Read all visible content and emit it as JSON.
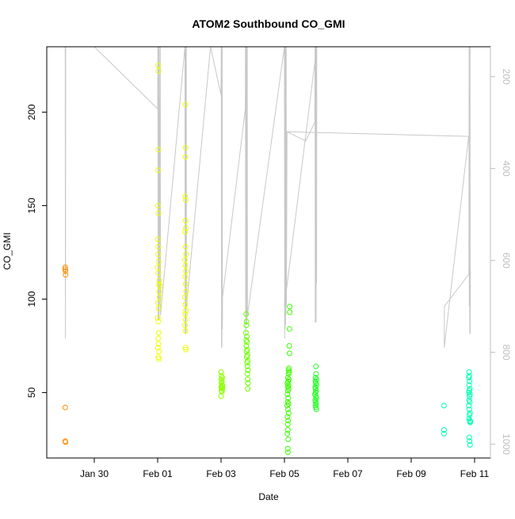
{
  "chart_data": {
    "type": "scatter",
    "title": "ATOM2 Southbound CO_GMI",
    "xlabel": "Date",
    "ylabel": "CO_GMI",
    "x_range": [
      "2017-01-28 12:00",
      "2017-02-11 12:00"
    ],
    "ylim": [
      15,
      235
    ],
    "y2lim": [
      1030,
      135
    ],
    "grid": false,
    "x_ticks": [
      {
        "x": "2017-01-30",
        "label": "Jan 30"
      },
      {
        "x": "2017-02-01",
        "label": "Feb 01"
      },
      {
        "x": "2017-02-03",
        "label": "Feb 03"
      },
      {
        "x": "2017-02-05",
        "label": "Feb 05"
      },
      {
        "x": "2017-02-07",
        "label": "Feb 07"
      },
      {
        "x": "2017-02-09",
        "label": "Feb 09"
      },
      {
        "x": "2017-02-11",
        "label": "Feb 11"
      }
    ],
    "y_ticks": [
      50,
      100,
      150,
      200
    ],
    "y2_ticks": [
      200,
      400,
      600,
      800,
      1000
    ],
    "y2_label": "",
    "colors": {
      "flight1": "#ff8c00",
      "flight2": "#ecff00",
      "flight3": "#8cff00",
      "flight4": "#6bff00",
      "flight5": "#3cff00",
      "flight6": "#22ff20",
      "flight7": "#00ffb4",
      "pressure": "#c8c8c8",
      "axis": "#000000",
      "y2axis": "#bdbdbd"
    },
    "series": [
      {
        "color_key": "flight1",
        "points": [
          [
            "2017-01-29 02:00",
            116
          ],
          [
            "2017-01-29 02:00",
            117
          ],
          [
            "2017-01-29 02:10",
            115
          ],
          [
            "2017-01-29 02:15",
            113
          ],
          [
            "2017-01-29 02:00",
            42
          ],
          [
            "2017-01-29 02:00",
            24
          ],
          [
            "2017-01-29 02:10",
            23.5
          ]
        ]
      },
      {
        "color_key": "flight2",
        "points": [
          [
            "2017-02-01 00:20",
            225
          ],
          [
            "2017-02-01 00:40",
            222
          ],
          [
            "2017-02-01 00:30",
            180
          ],
          [
            "2017-02-01 00:20",
            169
          ],
          [
            "2017-02-01 00:10",
            150
          ],
          [
            "2017-02-01 00:30",
            146
          ],
          [
            "2017-02-01 00:10",
            132
          ],
          [
            "2017-02-01 00:30",
            128
          ],
          [
            "2017-02-01 00:20",
            124
          ],
          [
            "2017-02-01 00:40",
            120
          ],
          [
            "2017-02-01 00:10",
            117
          ],
          [
            "2017-02-01 00:30",
            114
          ],
          [
            "2017-02-01 01:20",
            110
          ],
          [
            "2017-02-01 01:00",
            108
          ],
          [
            "2017-02-01 01:40",
            107
          ],
          [
            "2017-02-01 01:10",
            104
          ],
          [
            "2017-02-01 01:30",
            101
          ],
          [
            "2017-02-01 00:20",
            98
          ],
          [
            "2017-02-01 00:40",
            95
          ],
          [
            "2017-02-01 00:10",
            90
          ],
          [
            "2017-02-01 00:30",
            88
          ],
          [
            "2017-02-01 00:50",
            82
          ],
          [
            "2017-02-01 00:20",
            79
          ],
          [
            "2017-02-01 00:40",
            76
          ],
          [
            "2017-02-01 00:10",
            74
          ],
          [
            "2017-02-01 01:00",
            72
          ],
          [
            "2017-02-01 00:30",
            69
          ],
          [
            "2017-02-01 00:50",
            68
          ],
          [
            "2017-02-01 21:00",
            204
          ],
          [
            "2017-02-01 21:10",
            181
          ],
          [
            "2017-02-01 21:00",
            176
          ],
          [
            "2017-02-01 20:50",
            155
          ],
          [
            "2017-02-01 21:10",
            153
          ],
          [
            "2017-02-01 21:00",
            142
          ],
          [
            "2017-02-01 21:20",
            138
          ],
          [
            "2017-02-01 20:50",
            136
          ],
          [
            "2017-02-01 21:10",
            128
          ],
          [
            "2017-02-01 21:30",
            124
          ],
          [
            "2017-02-01 20:40",
            121
          ],
          [
            "2017-02-01 21:00",
            118
          ],
          [
            "2017-02-01 21:20",
            115
          ],
          [
            "2017-02-01 20:50",
            112
          ],
          [
            "2017-02-01 21:10",
            108
          ],
          [
            "2017-02-01 21:30",
            104
          ],
          [
            "2017-02-01 20:40",
            101
          ],
          [
            "2017-02-01 21:00",
            97
          ],
          [
            "2017-02-01 21:20",
            94
          ],
          [
            "2017-02-01 20:50",
            92
          ],
          [
            "2017-02-01 21:10",
            89
          ],
          [
            "2017-02-01 20:40",
            86
          ],
          [
            "2017-02-01 21:00",
            83
          ],
          [
            "2017-02-01 21:10",
            74
          ],
          [
            "2017-02-01 21:20",
            73
          ]
        ]
      },
      {
        "color_key": "flight3",
        "points": [
          [
            "2017-02-03 00:00",
            61
          ],
          [
            "2017-02-03 00:20",
            59
          ],
          [
            "2017-02-03 00:10",
            57
          ],
          [
            "2017-02-03 00:40",
            56
          ],
          [
            "2017-02-03 00:20",
            55
          ],
          [
            "2017-02-03 00:50",
            54
          ],
          [
            "2017-02-03 00:10",
            53
          ],
          [
            "2017-02-03 00:30",
            52.5
          ],
          [
            "2017-02-03 01:00",
            52
          ],
          [
            "2017-02-03 00:20",
            51
          ],
          [
            "2017-02-03 00:40",
            50.5
          ],
          [
            "2017-02-03 00:00",
            48
          ],
          [
            "2017-02-03 01:10",
            53.5
          ],
          [
            "2017-02-03 00:50",
            58
          ]
        ]
      },
      {
        "color_key": "flight4",
        "points": [
          [
            "2017-02-03 19:00",
            92
          ],
          [
            "2017-02-03 19:20",
            88
          ],
          [
            "2017-02-03 19:10",
            86
          ],
          [
            "2017-02-03 18:50",
            82
          ],
          [
            "2017-02-03 19:30",
            80
          ],
          [
            "2017-02-03 19:00",
            78
          ],
          [
            "2017-02-03 19:40",
            77
          ],
          [
            "2017-02-03 19:10",
            75
          ],
          [
            "2017-02-03 19:50",
            73
          ],
          [
            "2017-02-03 19:20",
            72
          ],
          [
            "2017-02-03 20:00",
            70
          ],
          [
            "2017-02-03 19:30",
            69
          ],
          [
            "2017-02-03 20:10",
            67
          ],
          [
            "2017-02-03 19:40",
            66
          ],
          [
            "2017-02-03 20:00",
            64
          ],
          [
            "2017-02-03 20:20",
            62
          ],
          [
            "2017-02-03 19:50",
            60
          ],
          [
            "2017-02-03 20:10",
            57
          ],
          [
            "2017-02-03 20:20",
            55
          ],
          [
            "2017-02-03 20:10",
            52
          ]
        ]
      },
      {
        "color_key": "flight5",
        "points": [
          [
            "2017-02-05 04:00",
            96
          ],
          [
            "2017-02-05 04:00",
            93
          ],
          [
            "2017-02-05 03:50",
            84
          ],
          [
            "2017-02-05 03:40",
            75
          ],
          [
            "2017-02-05 03:50",
            71
          ],
          [
            "2017-02-05 03:30",
            63
          ],
          [
            "2017-02-05 03:10",
            62
          ],
          [
            "2017-02-05 03:40",
            61
          ],
          [
            "2017-02-05 03:00",
            60
          ],
          [
            "2017-02-05 02:40",
            58
          ],
          [
            "2017-02-05 03:20",
            57
          ],
          [
            "2017-02-05 02:50",
            56
          ],
          [
            "2017-02-05 02:20",
            55
          ],
          [
            "2017-02-05 03:00",
            54
          ],
          [
            "2017-02-05 02:30",
            53
          ],
          [
            "2017-02-05 03:10",
            52
          ],
          [
            "2017-02-05 02:40",
            51
          ],
          [
            "2017-02-05 02:20",
            49
          ],
          [
            "2017-02-05 02:50",
            47
          ],
          [
            "2017-02-05 02:30",
            45
          ],
          [
            "2017-02-05 03:00",
            44
          ],
          [
            "2017-02-05 02:10",
            43
          ],
          [
            "2017-02-05 02:40",
            41
          ],
          [
            "2017-02-05 03:10",
            39
          ],
          [
            "2017-02-05 02:20",
            37
          ],
          [
            "2017-02-05 02:50",
            35
          ],
          [
            "2017-02-05 02:30",
            33
          ],
          [
            "2017-02-05 02:40",
            30
          ],
          [
            "2017-02-05 02:10",
            28
          ],
          [
            "2017-02-05 02:50",
            25
          ],
          [
            "2017-02-05 02:30",
            20
          ],
          [
            "2017-02-05 02:40",
            18
          ]
        ]
      },
      {
        "color_key": "flight6",
        "points": [
          [
            "2017-02-05 23:50",
            64
          ],
          [
            "2017-02-06 00:00",
            60
          ],
          [
            "2017-02-05 23:40",
            58
          ],
          [
            "2017-02-06 00:10",
            57
          ],
          [
            "2017-02-05 23:30",
            56
          ],
          [
            "2017-02-05 23:50",
            55
          ],
          [
            "2017-02-06 00:10",
            54
          ],
          [
            "2017-02-05 23:20",
            53
          ],
          [
            "2017-02-05 23:40",
            52
          ],
          [
            "2017-02-06 00:00",
            51
          ],
          [
            "2017-02-05 23:30",
            50
          ],
          [
            "2017-02-05 23:10",
            49
          ],
          [
            "2017-02-05 23:50",
            48
          ],
          [
            "2017-02-06 00:10",
            47
          ],
          [
            "2017-02-05 23:20",
            46
          ],
          [
            "2017-02-05 23:40",
            45
          ],
          [
            "2017-02-06 00:00",
            44
          ],
          [
            "2017-02-05 23:30",
            43
          ],
          [
            "2017-02-05 23:50",
            42
          ],
          [
            "2017-02-06 00:10",
            41
          ]
        ]
      },
      {
        "color_key": "flight7",
        "points": [
          [
            "2017-02-10 00:50",
            43
          ],
          [
            "2017-02-10 00:50",
            30
          ],
          [
            "2017-02-10 00:50",
            28
          ],
          [
            "2017-02-10 19:50",
            61
          ],
          [
            "2017-02-10 20:00",
            59
          ],
          [
            "2017-02-10 19:40",
            58
          ],
          [
            "2017-02-10 20:10",
            56
          ],
          [
            "2017-02-10 19:50",
            54
          ],
          [
            "2017-02-10 20:20",
            52
          ],
          [
            "2017-02-10 20:00",
            51
          ],
          [
            "2017-02-10 19:40",
            50
          ],
          [
            "2017-02-10 20:30",
            49
          ],
          [
            "2017-02-10 20:10",
            48
          ],
          [
            "2017-02-10 19:50",
            46
          ],
          [
            "2017-02-10 20:20",
            45
          ],
          [
            "2017-02-10 19:40",
            43
          ],
          [
            "2017-02-10 20:00",
            41
          ],
          [
            "2017-02-10 20:30",
            39
          ],
          [
            "2017-02-10 20:10",
            38
          ],
          [
            "2017-02-10 19:50",
            36
          ],
          [
            "2017-02-10 20:20",
            35
          ],
          [
            "2017-02-10 20:40",
            34
          ],
          [
            "2017-02-10 20:50",
            34.5
          ],
          [
            "2017-02-10 20:00",
            26
          ],
          [
            "2017-02-10 20:10",
            24
          ],
          [
            "2017-02-10 20:30",
            22
          ]
        ]
      }
    ],
    "pressure_track": [
      [
        "2017-01-29 02:00",
        135
      ],
      [
        "2017-01-29 02:10",
        770
      ],
      [
        "2017-01-29 02:20",
        135
      ],
      [
        "2017-01-30 00:00",
        135
      ],
      [
        "2017-02-01 00:00",
        270
      ],
      [
        "2017-02-01 00:10",
        135
      ],
      [
        "2017-02-01 00:20",
        730
      ],
      [
        "2017-02-01 00:30",
        135
      ],
      [
        "2017-02-01 00:40",
        730
      ],
      [
        "2017-02-01 00:50",
        135
      ],
      [
        "2017-02-01 01:00",
        730
      ],
      [
        "2017-02-01 01:10",
        135
      ],
      [
        "2017-02-01 01:20",
        700
      ],
      [
        "2017-02-01 02:00",
        135
      ],
      [
        "2017-02-01 02:10",
        720
      ],
      [
        "2017-02-01 20:40",
        135
      ],
      [
        "2017-02-01 20:50",
        760
      ],
      [
        "2017-02-01 21:00",
        135
      ],
      [
        "2017-02-01 21:10",
        760
      ],
      [
        "2017-02-01 21:20",
        135
      ],
      [
        "2017-02-01 21:30",
        760
      ],
      [
        "2017-02-01 21:40",
        135
      ],
      [
        "2017-02-01 21:50",
        700
      ],
      [
        "2017-02-02 16:00",
        135
      ],
      [
        "2017-02-03 00:00",
        240
      ],
      [
        "2017-02-03 00:10",
        135
      ],
      [
        "2017-02-03 00:20",
        790
      ],
      [
        "2017-02-03 00:30",
        135
      ],
      [
        "2017-02-03 00:40",
        790
      ],
      [
        "2017-02-03 00:50",
        135
      ],
      [
        "2017-02-03 01:00",
        750
      ],
      [
        "2017-02-03 01:10",
        680
      ],
      [
        "2017-02-03 18:20",
        270
      ],
      [
        "2017-02-03 18:30",
        135
      ],
      [
        "2017-02-03 18:40",
        770
      ],
      [
        "2017-02-03 18:50",
        135
      ],
      [
        "2017-02-03 19:00",
        740
      ],
      [
        "2017-02-03 19:10",
        135
      ],
      [
        "2017-02-03 19:20",
        720
      ],
      [
        "2017-02-03 19:30",
        135
      ],
      [
        "2017-02-03 19:40",
        740
      ],
      [
        "2017-02-03 19:50",
        135
      ],
      [
        "2017-02-03 20:00",
        720
      ],
      [
        "2017-02-05 00:00",
        135
      ],
      [
        "2017-02-05 00:10",
        770
      ],
      [
        "2017-02-05 00:20",
        135
      ],
      [
        "2017-02-05 00:30",
        750
      ],
      [
        "2017-02-05 00:40",
        135
      ],
      [
        "2017-02-05 00:50",
        740
      ],
      [
        "2017-02-05 01:00",
        135
      ],
      [
        "2017-02-05 01:10",
        720
      ],
      [
        "2017-02-05 01:20",
        135
      ],
      [
        "2017-02-05 01:30",
        700
      ],
      [
        "2017-02-05 02:00",
        320
      ],
      [
        "2017-02-05 16:00",
        340
      ],
      [
        "2017-02-05 23:00",
        300
      ],
      [
        "2017-02-05 23:10",
        135
      ],
      [
        "2017-02-05 23:20",
        735
      ],
      [
        "2017-02-05 23:30",
        135
      ],
      [
        "2017-02-05 23:40",
        735
      ],
      [
        "2017-02-05 23:50",
        135
      ],
      [
        "2017-02-06 00:00",
        735
      ],
      [
        "2017-02-06 00:10",
        135
      ],
      [
        "2017-02-06 00:20",
        650
      ],
      [
        "2017-02-06 00:30",
        135
      ],
      [
        "2017-02-05 00:00",
        700
      ],
      [
        "2017-02-05 02:00",
        320
      ],
      [
        "2017-02-10 19:30",
        330
      ],
      [
        "2017-02-10 01:00",
        790
      ],
      [
        "2017-02-10 01:10",
        700
      ],
      [
        "2017-02-10 19:40",
        630
      ],
      [
        "2017-02-10 19:50",
        135
      ],
      [
        "2017-02-10 20:00",
        700
      ],
      [
        "2017-02-10 20:10",
        135
      ],
      [
        "2017-02-10 20:20",
        760
      ],
      [
        "2017-02-10 20:30",
        135
      ],
      [
        "2017-02-10 20:40",
        760
      ],
      [
        "2017-02-10 20:50",
        620
      ]
    ]
  }
}
